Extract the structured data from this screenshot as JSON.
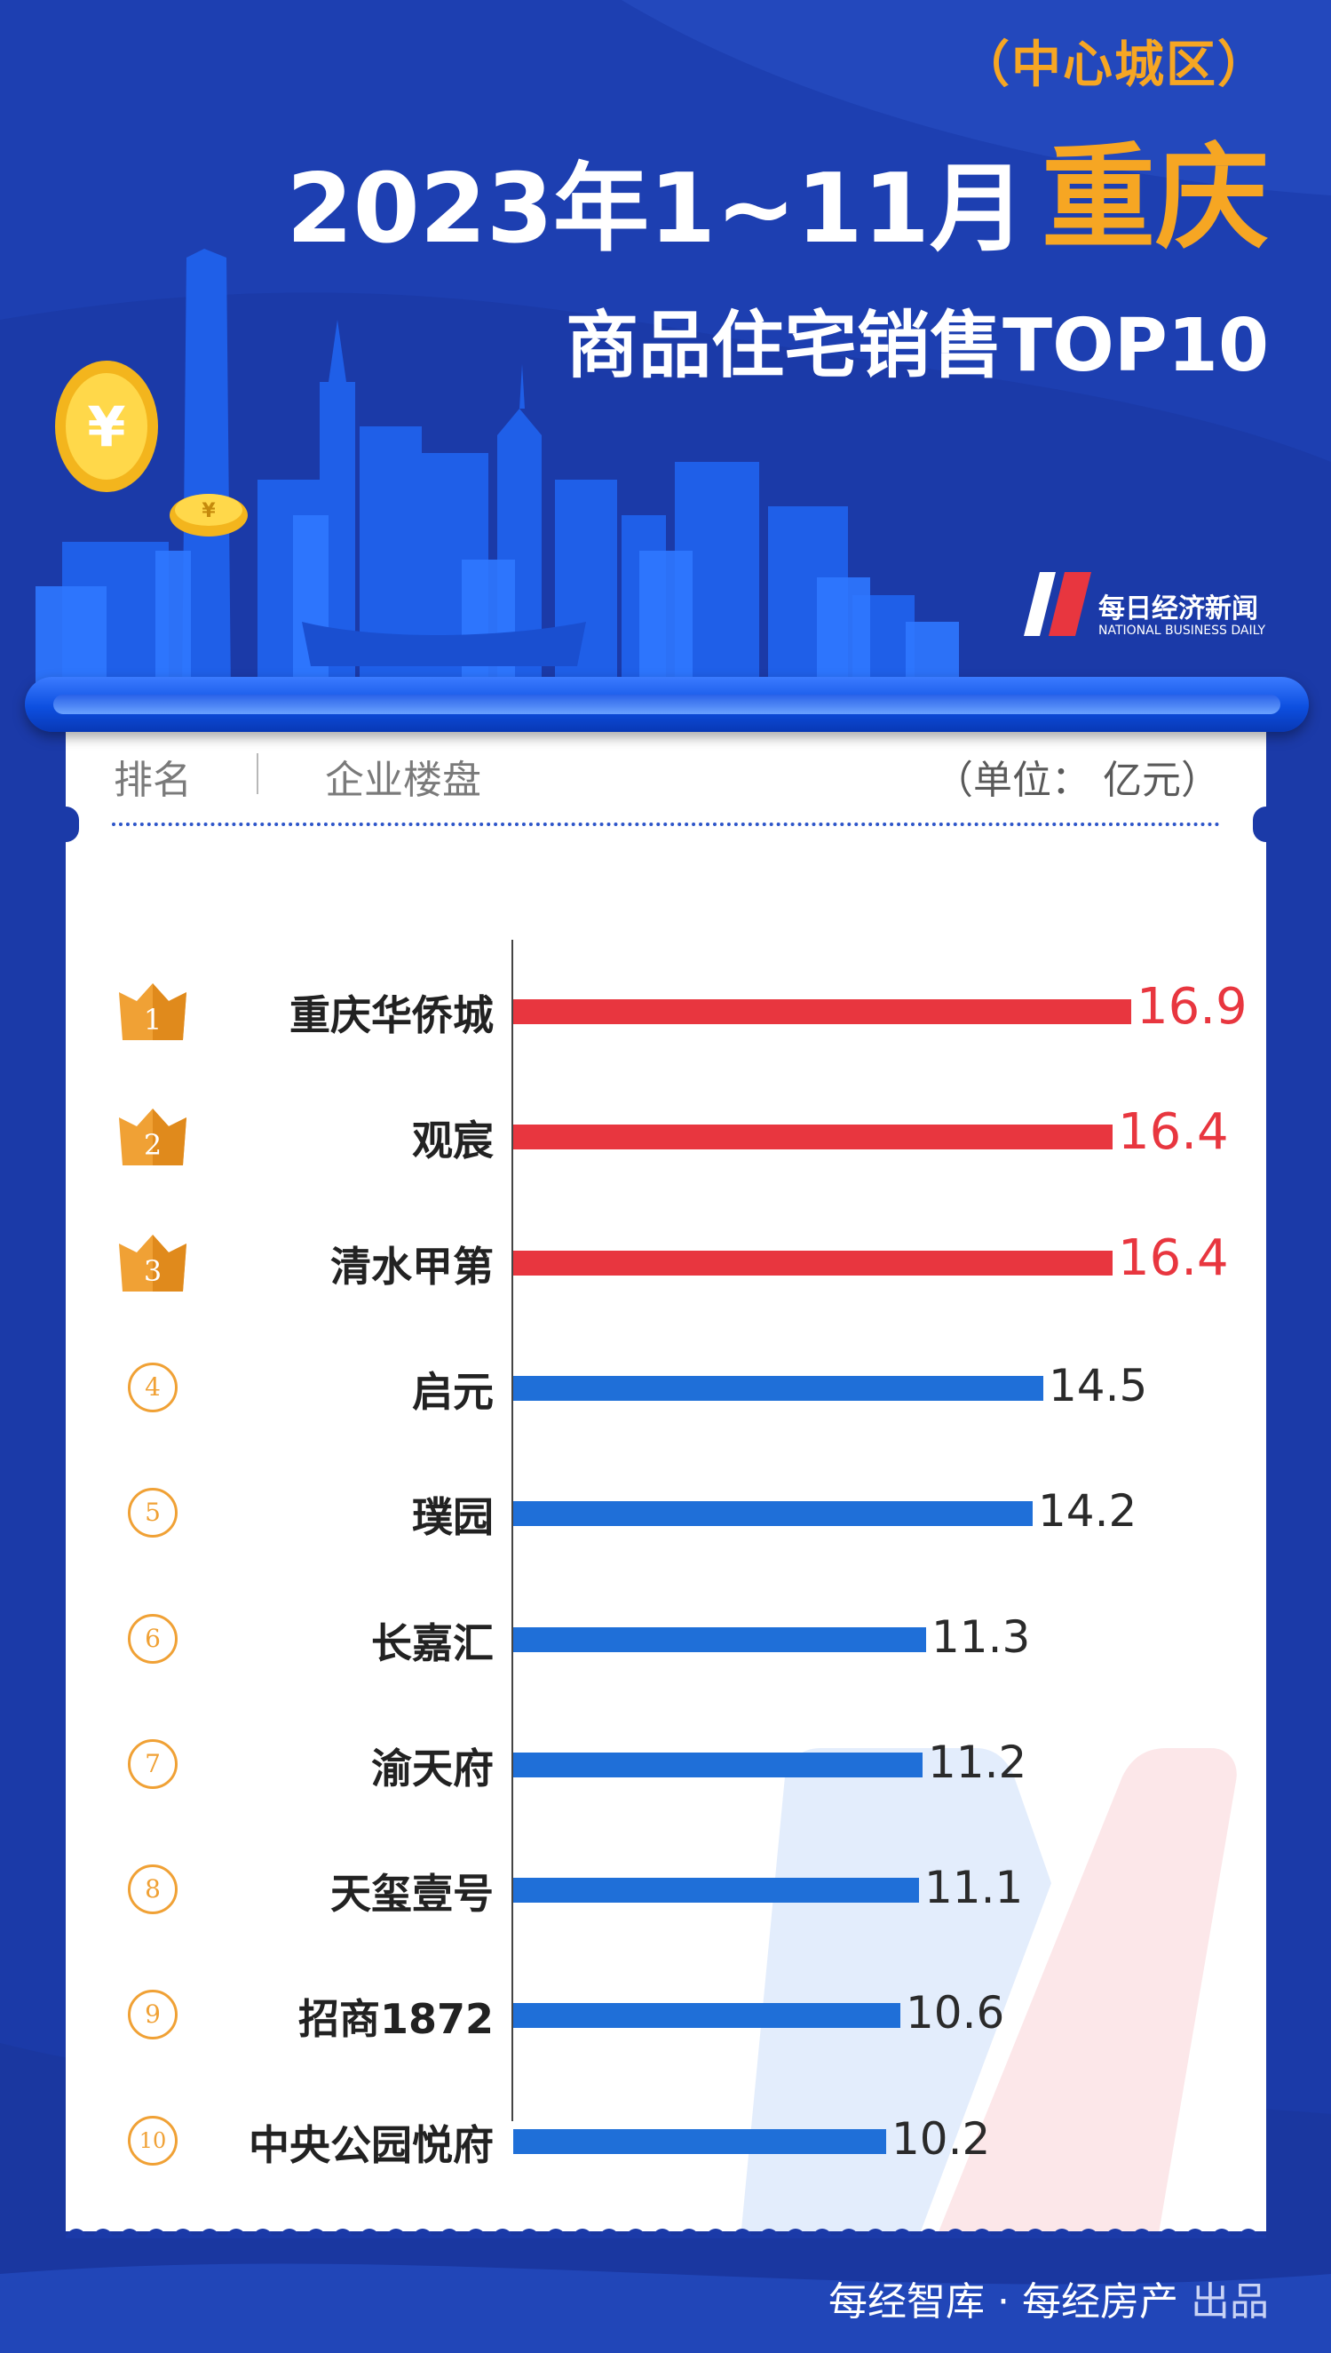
{
  "title": {
    "region": "（中心城区）",
    "period": "2023年1~11月",
    "city": "重庆",
    "subtitle": "商品住宅销售TOP10"
  },
  "brand": {
    "name_cn": "每日经济新闻",
    "name_en": "NATIONAL BUSINESS DAILY"
  },
  "table_header": {
    "rank": "排名",
    "project": "企业楼盘",
    "unit": "（单位： 亿元）"
  },
  "colors": {
    "top3_bar": "#e8363f",
    "other_bar": "#1f6fd8",
    "badge": "#f0a135",
    "background": "#1b3aa8",
    "title_accent": "#f6a623"
  },
  "chart_data": {
    "type": "bar",
    "orientation": "horizontal",
    "categories": [
      "重庆华侨城",
      "观宸",
      "清水甲第",
      "启元",
      "璞园",
      "长嘉汇",
      "渝天府",
      "天玺壹号",
      "招商1872",
      "中央公园悦府"
    ],
    "ranks": [
      "1",
      "2",
      "3",
      "4",
      "5",
      "6",
      "7",
      "8",
      "9",
      "10"
    ],
    "values": [
      16.9,
      16.4,
      16.4,
      14.5,
      14.2,
      11.3,
      11.2,
      11.1,
      10.6,
      10.2
    ],
    "value_labels": [
      "16.9",
      "16.4",
      "16.4",
      "14.5",
      "14.2",
      "11.3",
      "11.2",
      "11.1",
      "10.6",
      "10.2"
    ],
    "xlim": [
      0,
      17
    ],
    "unit": "亿元"
  },
  "footer": {
    "producers": "每经智库 · 每经房产",
    "suffix": "出品"
  }
}
